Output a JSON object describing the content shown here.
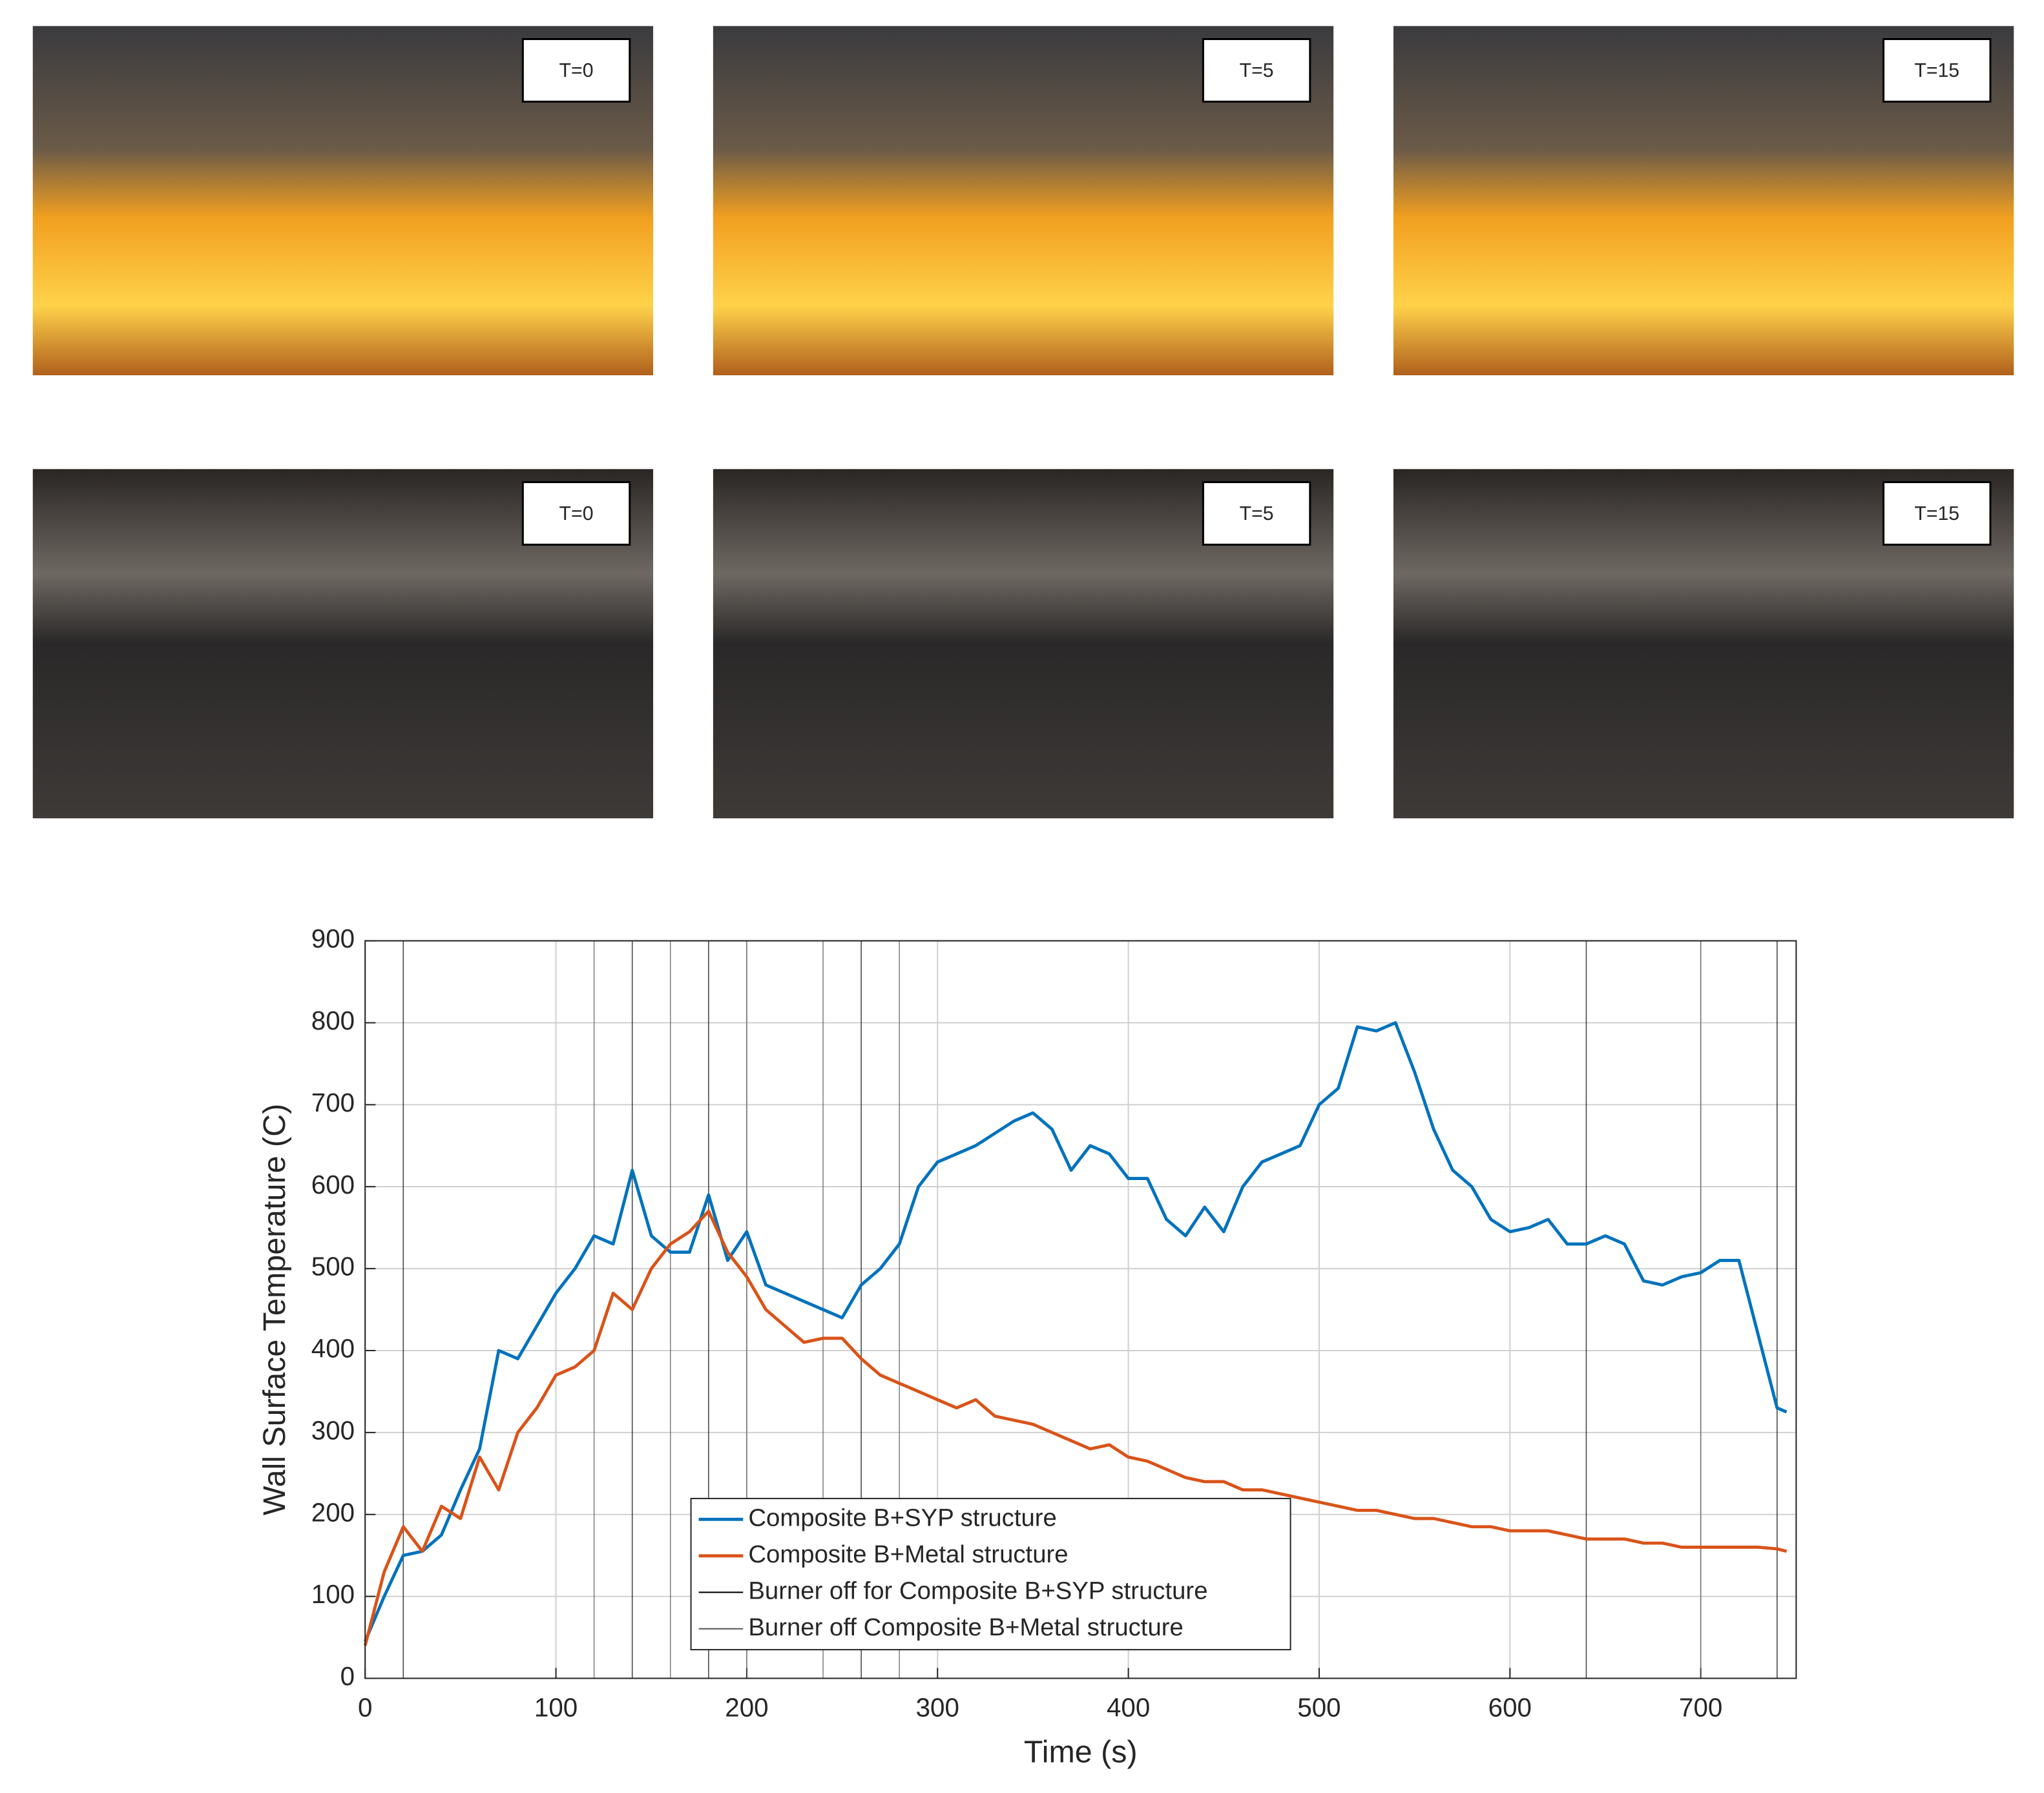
{
  "photos": [
    "T=0",
    "T=5",
    "T=15",
    "T=0",
    "T=5",
    "T=15"
  ],
  "chart_data": {
    "type": "line",
    "xlabel": "Time (s)",
    "ylabel": "Wall Surface Temperature (C)",
    "xlim": [
      0,
      750
    ],
    "ylim": [
      0,
      900
    ],
    "xticks": [
      0,
      100,
      200,
      300,
      400,
      500,
      600,
      700
    ],
    "yticks": [
      0,
      100,
      200,
      300,
      400,
      500,
      600,
      700,
      800,
      900
    ],
    "grid": true,
    "x": [
      0,
      10,
      20,
      30,
      40,
      50,
      60,
      70,
      80,
      90,
      100,
      110,
      120,
      130,
      140,
      150,
      160,
      170,
      180,
      190,
      200,
      210,
      220,
      230,
      240,
      250,
      260,
      270,
      280,
      290,
      300,
      310,
      320,
      330,
      340,
      350,
      360,
      370,
      380,
      390,
      400,
      410,
      420,
      430,
      440,
      450,
      460,
      470,
      480,
      490,
      500,
      510,
      520,
      530,
      540,
      550,
      560,
      570,
      580,
      590,
      600,
      610,
      620,
      630,
      640,
      650,
      660,
      670,
      680,
      690,
      700,
      710,
      720,
      730,
      740,
      745
    ],
    "series": [
      {
        "name": "Composite B+SYP structure",
        "color": "#0072bd",
        "values": [
          45,
          100,
          150,
          155,
          175,
          230,
          280,
          400,
          390,
          430,
          470,
          500,
          540,
          530,
          620,
          540,
          520,
          520,
          590,
          510,
          545,
          480,
          470,
          460,
          450,
          440,
          480,
          500,
          530,
          600,
          630,
          640,
          650,
          665,
          680,
          690,
          670,
          620,
          650,
          640,
          610,
          610,
          560,
          540,
          575,
          545,
          600,
          630,
          640,
          650,
          700,
          720,
          795,
          790,
          800,
          740,
          670,
          620,
          600,
          560,
          545,
          550,
          560,
          530,
          530,
          540,
          530,
          485,
          480,
          490,
          495,
          510,
          510,
          420,
          330,
          325
        ]
      },
      {
        "name": "Composite B+Metal structure",
        "color": "#d95319",
        "values": [
          40,
          130,
          185,
          155,
          210,
          195,
          270,
          230,
          300,
          330,
          370,
          380,
          400,
          470,
          450,
          500,
          530,
          545,
          570,
          520,
          490,
          450,
          430,
          410,
          415,
          415,
          390,
          370,
          360,
          350,
          340,
          330,
          340,
          320,
          315,
          310,
          300,
          290,
          280,
          285,
          270,
          265,
          255,
          245,
          240,
          240,
          230,
          230,
          225,
          220,
          215,
          210,
          205,
          205,
          200,
          195,
          195,
          190,
          185,
          185,
          180,
          180,
          180,
          175,
          170,
          170,
          170,
          165,
          165,
          160,
          160,
          160,
          160,
          160,
          158,
          155
        ]
      }
    ],
    "markers": [
      {
        "name": "Burner off for Composite B+SYP structure",
        "color": "#000000",
        "x": [
          20,
          140,
          180,
          260,
          640,
          740
        ]
      },
      {
        "name": "Burner off Composite B+Metal structure",
        "color": "#555555",
        "x": [
          120,
          160,
          200,
          240,
          280,
          700
        ]
      }
    ]
  }
}
